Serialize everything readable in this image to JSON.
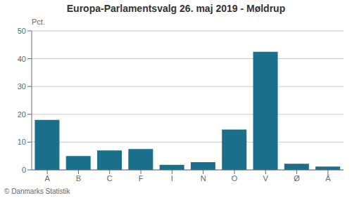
{
  "chart_data": {
    "type": "bar",
    "title": "Europa-Parlamentsvalg 26. maj 2019 - Møldrup",
    "categories": [
      "A",
      "B",
      "C",
      "F",
      "I",
      "N",
      "O",
      "V",
      "Ø",
      "Å"
    ],
    "values": [
      18.0,
      5.0,
      7.0,
      7.5,
      1.8,
      2.8,
      14.5,
      42.5,
      2.2,
      1.2
    ],
    "color": "#1a6f8a",
    "ylabel": "Pct.",
    "ylim": [
      0,
      50
    ],
    "yticks": [
      0,
      10,
      20,
      30,
      40,
      50
    ],
    "grid": true,
    "footer": "© Danmarks Statistik"
  }
}
